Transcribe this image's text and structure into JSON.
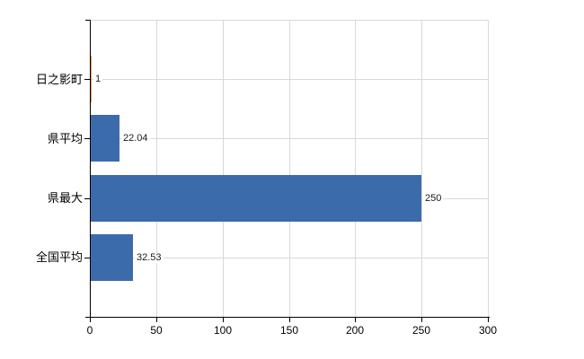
{
  "chart_data": {
    "type": "bar",
    "orientation": "horizontal",
    "title": "",
    "categories": [
      "日之影町",
      "県平均",
      "県最大",
      "全国平均"
    ],
    "values": [
      1,
      22.04,
      250,
      32.53
    ],
    "value_labels": [
      "1",
      "22.04",
      "250",
      "32.53"
    ],
    "bar_colors": [
      "#e79540",
      "#3c6bac",
      "#3c6bac",
      "#3c6bac"
    ],
    "xlim": [
      0,
      300
    ],
    "x_ticks": [
      0,
      50,
      100,
      150,
      200,
      250,
      300
    ],
    "xlabel": "",
    "ylabel": "",
    "grid": true,
    "legend": false
  },
  "colors": {
    "bar_blue": "#3c6bac",
    "bar_orange": "#e79540",
    "gridline": "#d9d9d9",
    "axis": "#000000",
    "text": "#000000",
    "background": "#ffffff"
  }
}
